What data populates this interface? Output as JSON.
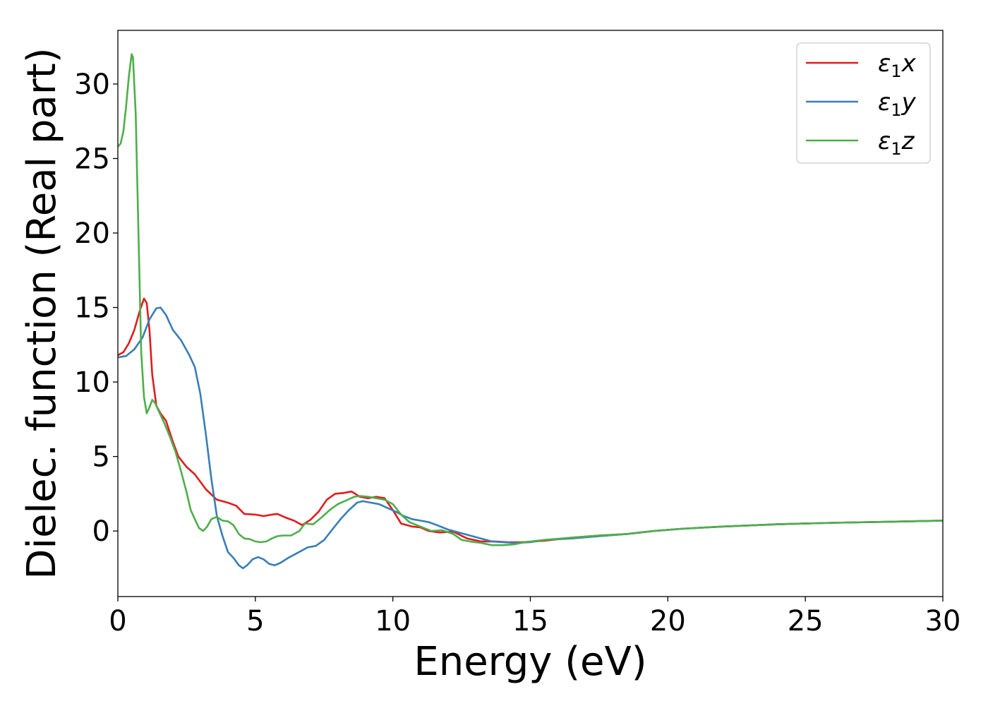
{
  "chart_data": {
    "type": "line",
    "title": "",
    "xlabel": "Energy (eV)",
    "ylabel": "Dielec. function (Real part)",
    "xlim": [
      0,
      30
    ],
    "ylim": [
      -4.4,
      33.6
    ],
    "xticks": [
      0,
      5,
      10,
      15,
      20,
      25,
      30
    ],
    "yticks": [
      0,
      5,
      10,
      15,
      20,
      25,
      30
    ],
    "grid": false,
    "legend_position": "top-right",
    "series": [
      {
        "name": "ε1x",
        "sym": "ε",
        "sub": "1",
        "var": "x",
        "color": "#e41a1c",
        "points": [
          [
            0,
            11.8
          ],
          [
            0.2,
            12.0
          ],
          [
            0.4,
            12.6
          ],
          [
            0.6,
            13.5
          ],
          [
            0.8,
            14.8
          ],
          [
            0.95,
            15.6
          ],
          [
            1.05,
            15.3
          ],
          [
            1.15,
            13.5
          ],
          [
            1.25,
            10.5
          ],
          [
            1.4,
            8.4
          ],
          [
            1.55,
            7.9
          ],
          [
            1.75,
            7.4
          ],
          [
            2.0,
            6.0
          ],
          [
            2.2,
            5.0
          ],
          [
            2.5,
            4.3
          ],
          [
            2.8,
            3.8
          ],
          [
            3.2,
            2.8
          ],
          [
            3.6,
            2.1
          ],
          [
            4.0,
            1.9
          ],
          [
            4.3,
            1.7
          ],
          [
            4.6,
            1.15
          ],
          [
            5.0,
            1.1
          ],
          [
            5.3,
            1.0
          ],
          [
            5.6,
            1.1
          ],
          [
            5.8,
            1.15
          ],
          [
            6.1,
            0.9
          ],
          [
            6.4,
            0.7
          ],
          [
            6.7,
            0.4
          ],
          [
            7.0,
            0.75
          ],
          [
            7.3,
            1.3
          ],
          [
            7.6,
            2.1
          ],
          [
            7.9,
            2.5
          ],
          [
            8.2,
            2.55
          ],
          [
            8.5,
            2.65
          ],
          [
            8.8,
            2.3
          ],
          [
            9.1,
            2.2
          ],
          [
            9.4,
            2.3
          ],
          [
            9.7,
            2.2
          ],
          [
            10.0,
            1.4
          ],
          [
            10.3,
            0.5
          ],
          [
            10.7,
            0.3
          ],
          [
            11.0,
            0.25
          ],
          [
            11.3,
            0.0
          ],
          [
            11.7,
            -0.1
          ],
          [
            12.2,
            -0.05
          ],
          [
            12.7,
            -0.5
          ],
          [
            13.2,
            -0.7
          ],
          [
            13.7,
            -0.7
          ],
          [
            14.2,
            -0.75
          ],
          [
            14.7,
            -0.75
          ],
          [
            15.5,
            -0.65
          ],
          [
            16.5,
            -0.45
          ],
          [
            17.5,
            -0.3
          ],
          [
            18.5,
            -0.2
          ],
          [
            19.5,
            0.0
          ],
          [
            20.5,
            0.15
          ],
          [
            22,
            0.3
          ],
          [
            24,
            0.45
          ],
          [
            26,
            0.55
          ],
          [
            28,
            0.62
          ],
          [
            30,
            0.7
          ]
        ]
      },
      {
        "name": "ε1y",
        "sym": "ε",
        "sub": "1",
        "var": "y",
        "color": "#377eb8",
        "points": [
          [
            0,
            11.65
          ],
          [
            0.3,
            11.75
          ],
          [
            0.6,
            12.2
          ],
          [
            0.9,
            13.0
          ],
          [
            1.15,
            14.2
          ],
          [
            1.4,
            14.95
          ],
          [
            1.55,
            15.0
          ],
          [
            1.75,
            14.5
          ],
          [
            2.0,
            13.5
          ],
          [
            2.3,
            12.8
          ],
          [
            2.6,
            11.8
          ],
          [
            2.8,
            11.0
          ],
          [
            3.0,
            9.2
          ],
          [
            3.2,
            6.5
          ],
          [
            3.4,
            3.5
          ],
          [
            3.6,
            1.0
          ],
          [
            3.8,
            -0.3
          ],
          [
            4.0,
            -1.4
          ],
          [
            4.2,
            -1.8
          ],
          [
            4.4,
            -2.3
          ],
          [
            4.55,
            -2.5
          ],
          [
            4.7,
            -2.3
          ],
          [
            4.9,
            -1.9
          ],
          [
            5.1,
            -1.75
          ],
          [
            5.3,
            -1.9
          ],
          [
            5.5,
            -2.2
          ],
          [
            5.7,
            -2.3
          ],
          [
            5.9,
            -2.15
          ],
          [
            6.2,
            -1.8
          ],
          [
            6.5,
            -1.5
          ],
          [
            6.9,
            -1.1
          ],
          [
            7.2,
            -1.0
          ],
          [
            7.5,
            -0.6
          ],
          [
            7.8,
            0.1
          ],
          [
            8.1,
            0.8
          ],
          [
            8.4,
            1.4
          ],
          [
            8.7,
            1.9
          ],
          [
            8.9,
            2.0
          ],
          [
            9.2,
            1.9
          ],
          [
            9.5,
            1.8
          ],
          [
            9.8,
            1.55
          ],
          [
            10.1,
            1.3
          ],
          [
            10.4,
            1.0
          ],
          [
            10.7,
            0.8
          ],
          [
            11.0,
            0.7
          ],
          [
            11.3,
            0.6
          ],
          [
            11.6,
            0.4
          ],
          [
            12.0,
            0.1
          ],
          [
            12.4,
            -0.1
          ],
          [
            12.8,
            -0.3
          ],
          [
            13.2,
            -0.5
          ],
          [
            13.6,
            -0.7
          ],
          [
            14.0,
            -0.75
          ],
          [
            14.5,
            -0.8
          ],
          [
            15.0,
            -0.75
          ],
          [
            15.5,
            -0.6
          ],
          [
            16.5,
            -0.5
          ],
          [
            17.5,
            -0.35
          ],
          [
            18.5,
            -0.2
          ],
          [
            19.5,
            0.0
          ],
          [
            20.5,
            0.15
          ],
          [
            22,
            0.3
          ],
          [
            24,
            0.45
          ],
          [
            26,
            0.55
          ],
          [
            28,
            0.62
          ],
          [
            30,
            0.7
          ]
        ]
      },
      {
        "name": "ε1z",
        "sym": "ε",
        "sub": "1",
        "var": "z",
        "color": "#4daf4a",
        "points": [
          [
            0,
            25.8
          ],
          [
            0.1,
            26.0
          ],
          [
            0.2,
            26.8
          ],
          [
            0.3,
            28.5
          ],
          [
            0.4,
            30.5
          ],
          [
            0.5,
            32.0
          ],
          [
            0.55,
            31.8
          ],
          [
            0.65,
            28.0
          ],
          [
            0.75,
            20.0
          ],
          [
            0.85,
            12.0
          ],
          [
            0.95,
            9.0
          ],
          [
            1.05,
            7.9
          ],
          [
            1.15,
            8.3
          ],
          [
            1.25,
            8.8
          ],
          [
            1.35,
            8.6
          ],
          [
            1.5,
            8.0
          ],
          [
            1.7,
            7.2
          ],
          [
            1.9,
            6.3
          ],
          [
            2.1,
            5.3
          ],
          [
            2.3,
            4.0
          ],
          [
            2.5,
            2.6
          ],
          [
            2.65,
            1.4
          ],
          [
            2.8,
            0.8
          ],
          [
            2.95,
            0.2
          ],
          [
            3.1,
            0.0
          ],
          [
            3.25,
            0.3
          ],
          [
            3.4,
            0.8
          ],
          [
            3.6,
            0.95
          ],
          [
            3.8,
            0.7
          ],
          [
            4.0,
            0.65
          ],
          [
            4.2,
            0.4
          ],
          [
            4.4,
            -0.2
          ],
          [
            4.6,
            -0.5
          ],
          [
            4.8,
            -0.55
          ],
          [
            5.0,
            -0.7
          ],
          [
            5.2,
            -0.75
          ],
          [
            5.4,
            -0.7
          ],
          [
            5.6,
            -0.5
          ],
          [
            5.8,
            -0.35
          ],
          [
            6.0,
            -0.3
          ],
          [
            6.3,
            -0.3
          ],
          [
            6.6,
            0.0
          ],
          [
            6.8,
            0.5
          ],
          [
            7.1,
            0.45
          ],
          [
            7.4,
            0.9
          ],
          [
            7.7,
            1.4
          ],
          [
            8.0,
            1.8
          ],
          [
            8.3,
            2.05
          ],
          [
            8.6,
            2.3
          ],
          [
            8.8,
            2.35
          ],
          [
            9.1,
            2.3
          ],
          [
            9.4,
            2.2
          ],
          [
            9.7,
            2.1
          ],
          [
            10.0,
            1.8
          ],
          [
            10.3,
            1.1
          ],
          [
            10.6,
            0.6
          ],
          [
            11.0,
            0.3
          ],
          [
            11.4,
            0.0
          ],
          [
            11.8,
            0.05
          ],
          [
            12.2,
            -0.2
          ],
          [
            12.5,
            -0.6
          ],
          [
            12.8,
            -0.7
          ],
          [
            13.2,
            -0.8
          ],
          [
            13.6,
            -0.95
          ],
          [
            14.0,
            -0.95
          ],
          [
            14.4,
            -0.9
          ],
          [
            14.8,
            -0.75
          ],
          [
            15.5,
            -0.6
          ],
          [
            16.5,
            -0.45
          ],
          [
            17.5,
            -0.3
          ],
          [
            18.5,
            -0.2
          ],
          [
            19.5,
            0.0
          ],
          [
            20.5,
            0.15
          ],
          [
            22,
            0.3
          ],
          [
            24,
            0.45
          ],
          [
            26,
            0.55
          ],
          [
            28,
            0.62
          ],
          [
            30,
            0.7
          ]
        ]
      }
    ]
  }
}
